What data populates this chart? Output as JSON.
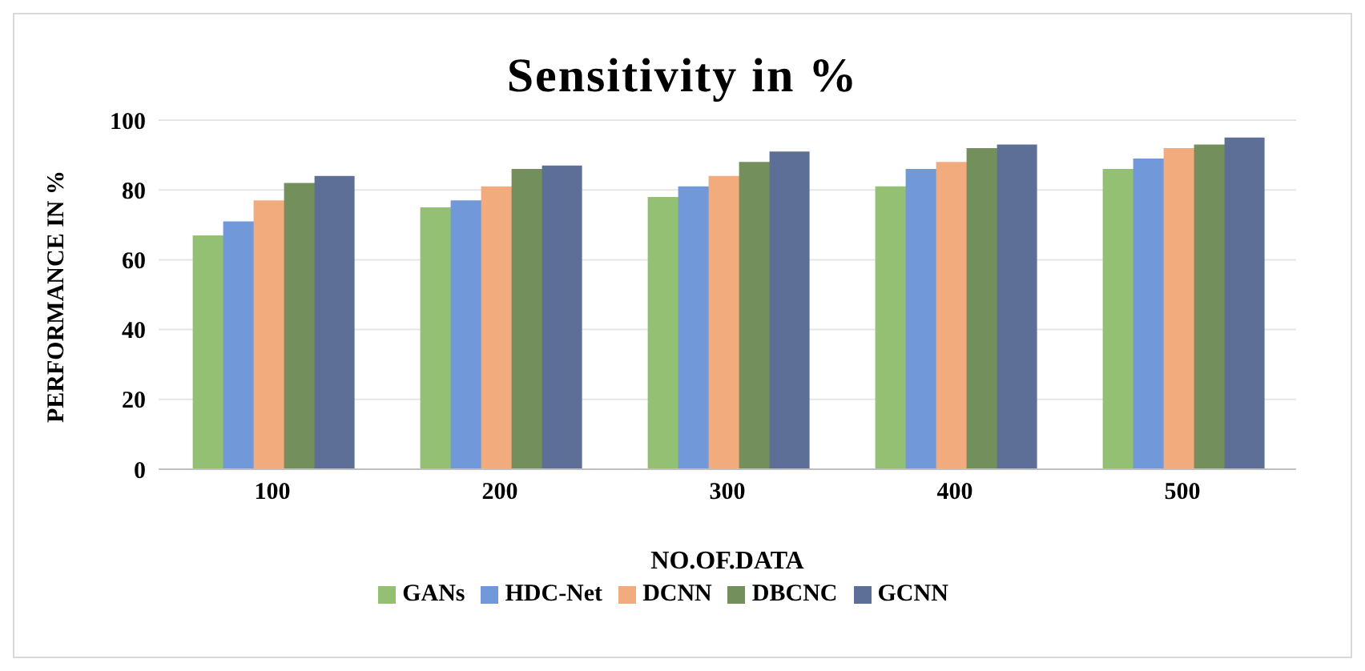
{
  "chart_data": {
    "type": "bar",
    "title": "Sensitivity in %",
    "xlabel": "NO.OF.DATA",
    "ylabel": "PERFORMANCE IN %",
    "categories": [
      "100",
      "200",
      "300",
      "400",
      "500"
    ],
    "series": [
      {
        "name": "GANs",
        "color": "#93c072",
        "values": [
          67,
          75,
          78,
          81,
          86
        ]
      },
      {
        "name": "HDC-Net",
        "color": "#7198d8",
        "values": [
          71,
          77,
          81,
          86,
          89
        ]
      },
      {
        "name": "DCNN",
        "color": "#f2ab7c",
        "values": [
          77,
          81,
          84,
          88,
          92
        ]
      },
      {
        "name": "DBCNC",
        "color": "#728f5c",
        "values": [
          82,
          86,
          88,
          92,
          93
        ]
      },
      {
        "name": "GCNN",
        "color": "#5d6f97",
        "values": [
          84,
          87,
          91,
          93,
          95
        ]
      }
    ],
    "ylim": [
      0,
      100
    ],
    "yticks": [
      0,
      20,
      40,
      60,
      80,
      100
    ],
    "grid": "y",
    "legend": "bottom"
  }
}
